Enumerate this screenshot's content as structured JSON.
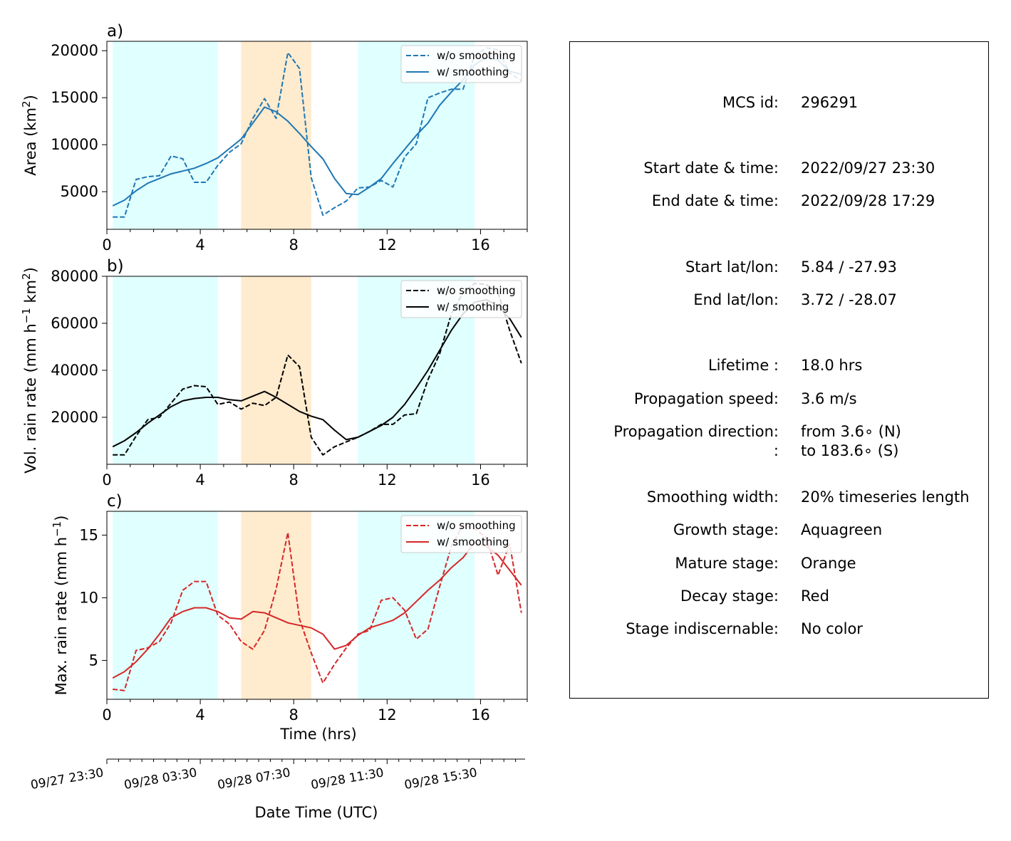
{
  "chart_data": [
    {
      "type": "line",
      "panel_label": "a)",
      "ylabel": "Area  (km²)",
      "ylabel_base": "Area  (km",
      "ylabel_sup": "2",
      "ylabel_end": ")",
      "xlim": [
        0,
        18
      ],
      "ylim": [
        1000,
        21000
      ],
      "yticks": [
        5000,
        10000,
        15000,
        20000
      ],
      "xticks": [
        0,
        4,
        8,
        12,
        16
      ],
      "color": "#1f77b4",
      "legend": "top-right",
      "series": [
        {
          "name": "w/o smoothing",
          "style": "dashed",
          "x": [
            0.25,
            0.75,
            1.25,
            1.75,
            2.25,
            2.75,
            3.25,
            3.75,
            4.25,
            4.75,
            5.25,
            5.75,
            6.25,
            6.75,
            7.25,
            7.75,
            8.25,
            8.75,
            9.25,
            9.75,
            10.25,
            10.75,
            11.25,
            11.75,
            12.25,
            12.75,
            13.25,
            13.75,
            14.25,
            14.75,
            15.25,
            15.75,
            16.25,
            16.75,
            17.25,
            17.75
          ],
          "y": [
            2300,
            2300,
            6300,
            6600,
            6700,
            8800,
            8500,
            6000,
            6000,
            7800,
            9200,
            10100,
            12800,
            14900,
            12800,
            19800,
            18100,
            6500,
            2500,
            3300,
            4000,
            5400,
            5500,
            6200,
            5500,
            8700,
            10100,
            15000,
            15500,
            15900,
            15900,
            19500,
            20300,
            20100,
            17600,
            16800
          ]
        },
        {
          "name": "w/ smoothing",
          "style": "solid",
          "x": [
            0.25,
            0.75,
            1.25,
            1.75,
            2.25,
            2.75,
            3.25,
            3.75,
            4.25,
            4.75,
            5.25,
            5.75,
            6.25,
            6.75,
            7.25,
            7.75,
            8.25,
            8.75,
            9.25,
            9.75,
            10.25,
            10.75,
            11.25,
            11.75,
            12.25,
            12.75,
            13.25,
            13.75,
            14.25,
            14.75,
            15.25,
            15.75,
            16.25,
            16.75,
            17.25,
            17.75
          ],
          "y": [
            3500,
            4100,
            5100,
            5900,
            6400,
            6900,
            7200,
            7500,
            8000,
            8600,
            9600,
            10600,
            12300,
            14000,
            13500,
            12500,
            11200,
            9800,
            8500,
            6400,
            4800,
            4700,
            5500,
            6400,
            8000,
            9500,
            11000,
            12300,
            14200,
            15600,
            16900,
            18500,
            19300,
            19000,
            17800,
            17500
          ]
        }
      ]
    },
    {
      "type": "line",
      "panel_label": "b)",
      "ylabel": "Vol. rain rate (mm h⁻¹ km²)",
      "ylabel_base": "Vol. rain rate (mm h",
      "ylabel_sup": "−1",
      "ylabel_mid": " km",
      "ylabel_sup2": "2",
      "ylabel_end": ")",
      "xlim": [
        0,
        18
      ],
      "ylim": [
        0,
        80000
      ],
      "yticks": [
        20000,
        40000,
        60000,
        80000
      ],
      "xticks": [
        0,
        4,
        8,
        12,
        16
      ],
      "color": "#000000",
      "legend": "top-right",
      "series": [
        {
          "name": "w/o smoothing",
          "style": "dashed",
          "x": [
            0.25,
            0.75,
            1.25,
            1.75,
            2.25,
            2.75,
            3.25,
            3.75,
            4.25,
            4.75,
            5.25,
            5.75,
            6.25,
            6.75,
            7.25,
            7.75,
            8.25,
            8.75,
            9.25,
            9.75,
            10.25,
            10.75,
            11.25,
            11.75,
            12.25,
            12.75,
            13.25,
            13.75,
            14.25,
            14.75,
            15.25,
            15.75,
            16.25,
            16.75,
            17.25,
            17.75
          ],
          "y": [
            4000,
            4000,
            12000,
            19000,
            20000,
            26000,
            32000,
            33500,
            33000,
            25500,
            26500,
            23500,
            26000,
            25000,
            28500,
            46500,
            41500,
            11500,
            4000,
            7500,
            9500,
            11500,
            14000,
            17000,
            17000,
            21000,
            21500,
            36000,
            47000,
            64000,
            73000,
            77000,
            76500,
            73000,
            57000,
            43000
          ]
        },
        {
          "name": "w/ smoothing",
          "style": "solid",
          "x": [
            0.25,
            0.75,
            1.25,
            1.75,
            2.25,
            2.75,
            3.25,
            3.75,
            4.25,
            4.75,
            5.25,
            5.75,
            6.25,
            6.75,
            7.25,
            7.75,
            8.25,
            8.75,
            9.25,
            9.75,
            10.25,
            10.75,
            11.25,
            11.75,
            12.25,
            12.75,
            13.25,
            13.75,
            14.25,
            14.75,
            15.25,
            15.75,
            16.25,
            16.75,
            17.25,
            17.75
          ],
          "y": [
            7500,
            10000,
            13500,
            17500,
            21000,
            24500,
            27000,
            28000,
            28500,
            28500,
            27500,
            27000,
            29000,
            31000,
            28500,
            25500,
            22500,
            20500,
            19000,
            14500,
            10500,
            11500,
            14000,
            16500,
            20000,
            25500,
            32500,
            40000,
            48500,
            57000,
            64000,
            69000,
            70000,
            67500,
            62000,
            54000
          ]
        }
      ]
    },
    {
      "type": "line",
      "panel_label": "c)",
      "ylabel": "Max. rain rate  (mm h⁻¹)",
      "ylabel_base": "Max. rain rate  (mm h",
      "ylabel_sup": "−1",
      "ylabel_end": ")",
      "xlabel": "Time (hrs)",
      "xlim": [
        0,
        18
      ],
      "ylim": [
        1.9,
        16.9
      ],
      "yticks": [
        5,
        10,
        15
      ],
      "xticks": [
        0,
        4,
        8,
        12,
        16
      ],
      "color": "#d62728",
      "legend": "top-right",
      "series": [
        {
          "name": "w/o smoothing",
          "style": "dashed",
          "x": [
            0.25,
            0.75,
            1.25,
            1.75,
            2.25,
            2.75,
            3.25,
            3.75,
            4.25,
            4.75,
            5.25,
            5.75,
            6.25,
            6.75,
            7.25,
            7.75,
            8.25,
            8.75,
            9.25,
            9.75,
            10.25,
            10.75,
            11.25,
            11.75,
            12.25,
            12.75,
            13.25,
            13.75,
            14.25,
            14.75,
            15.25,
            15.75,
            16.25,
            16.75,
            17.25,
            17.75
          ],
          "y": [
            2.7,
            2.6,
            5.8,
            6.0,
            6.5,
            8.0,
            10.6,
            11.3,
            11.3,
            8.6,
            7.9,
            6.5,
            5.9,
            7.4,
            10.7,
            15.2,
            8.3,
            5.6,
            3.2,
            4.7,
            6.0,
            7.1,
            7.4,
            9.8,
            10.0,
            9.0,
            6.7,
            7.5,
            10.9,
            14.1,
            15.8,
            15.5,
            14.8,
            11.8,
            14.3,
            8.8
          ]
        },
        {
          "name": "w/ smoothing",
          "style": "solid",
          "x": [
            0.25,
            0.75,
            1.25,
            1.75,
            2.25,
            2.75,
            3.25,
            3.75,
            4.25,
            4.75,
            5.25,
            5.75,
            6.25,
            6.75,
            7.25,
            7.75,
            8.25,
            8.75,
            9.25,
            9.75,
            10.25,
            10.75,
            11.25,
            11.75,
            12.25,
            12.75,
            13.25,
            13.75,
            14.25,
            14.75,
            15.25,
            15.75,
            16.25,
            16.75,
            17.25,
            17.75
          ],
          "y": [
            3.6,
            4.1,
            4.9,
            5.9,
            7.1,
            8.4,
            8.9,
            9.2,
            9.2,
            8.9,
            8.4,
            8.3,
            8.9,
            8.8,
            8.4,
            8.0,
            7.8,
            7.6,
            7.1,
            5.9,
            6.2,
            7.0,
            7.6,
            7.9,
            8.2,
            8.8,
            9.7,
            10.6,
            11.4,
            12.4,
            13.2,
            14.4,
            14.1,
            13.4,
            12.2,
            11.0
          ]
        }
      ]
    }
  ],
  "stages": [
    {
      "name": "growth",
      "start": 0.25,
      "end": 4.75,
      "color": "#e0ffff"
    },
    {
      "name": "mature",
      "start": 5.75,
      "end": 8.75,
      "color": "#ffebcd"
    },
    {
      "name": "growth",
      "start": 10.75,
      "end": 15.75,
      "color": "#e0ffff"
    }
  ],
  "date_axis": {
    "label": "Date Time (UTC)",
    "ticks": [
      {
        "x": 0,
        "label": "09/27 23:30"
      },
      {
        "x": 4,
        "label": "09/28 03:30"
      },
      {
        "x": 8,
        "label": "09/28 07:30"
      },
      {
        "x": 12,
        "label": "09/28 11:30"
      },
      {
        "x": 16,
        "label": "09/28 15:30"
      }
    ]
  },
  "info": {
    "rows": [
      {
        "label": "MCS id:",
        "value": "296291"
      },
      {
        "label": "Start date & time:",
        "value": "2022/09/27 23:30"
      },
      {
        "label": "End date & time:",
        "value": "2022/09/28 17:29"
      },
      {
        "label": "Start lat/lon:",
        "value": "5.84 / -27.93"
      },
      {
        "label": "End lat/lon:",
        "value": "3.72 / -28.07"
      },
      {
        "label": "Lifetime :",
        "value": "18.0 hrs"
      },
      {
        "label": "Propagation speed:",
        "value": "3.6 m/s"
      },
      {
        "label": "Propagation direction:",
        "value": "from   3.6∘ (N)"
      },
      {
        "label": ":",
        "value": "to   183.6∘ (S)"
      },
      {
        "label": "Smoothing width:",
        "value": "20% timeseries length"
      },
      {
        "label": "Growth stage:",
        "value": "Aquagreen"
      },
      {
        "label": "Mature stage:",
        "value": "Orange"
      },
      {
        "label": "Decay stage:",
        "value": "Red"
      },
      {
        "label": "Stage indiscernable:",
        "value": "No color"
      }
    ]
  }
}
